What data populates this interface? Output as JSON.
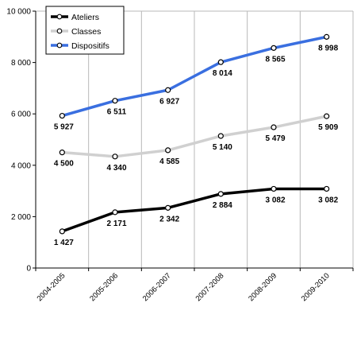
{
  "chart_data": {
    "type": "line",
    "title": "",
    "xlabel": "",
    "ylabel": "",
    "categories": [
      "2004-2005",
      "2005-2006",
      "2006-2007",
      "2007-2008",
      "2008-2009",
      "2009-2010"
    ],
    "ylim": [
      0,
      10000
    ],
    "yticks": [
      0,
      2000,
      4000,
      6000,
      8000,
      10000
    ],
    "ytick_labels": [
      "0",
      "2 000",
      "4 000",
      "6 000",
      "8 000",
      "10 000"
    ],
    "grid": "vertical lines",
    "legend_position": "top-left",
    "series": [
      {
        "name": "Ateliers",
        "color": "#000000",
        "values": [
          1427,
          2171,
          2342,
          2884,
          3082,
          3082
        ],
        "labels": [
          "1 427",
          "2 171",
          "2 342",
          "2 884",
          "3 082",
          "3 082"
        ]
      },
      {
        "name": "Classes",
        "color": "#d0d0d0",
        "values": [
          4500,
          4340,
          4585,
          5140,
          5479,
          5909
        ],
        "labels": [
          "4 500",
          "4 340",
          "4 585",
          "5 140",
          "5 479",
          "5 909"
        ]
      },
      {
        "name": "Dispositifs",
        "color": "#3a6fe0",
        "values": [
          5927,
          6511,
          6927,
          8014,
          8565,
          8998
        ],
        "labels": [
          "5 927",
          "6 511",
          "6 927",
          "8 014",
          "8 565",
          "8 998"
        ]
      }
    ]
  }
}
